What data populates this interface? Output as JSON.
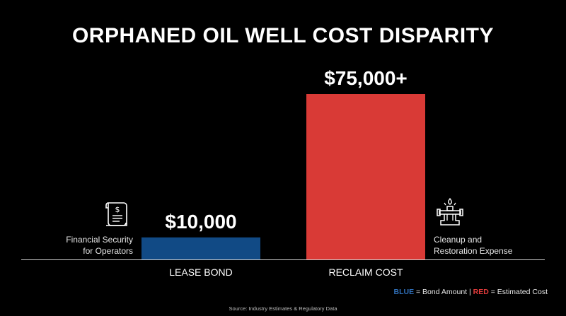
{
  "chart_data": {
    "type": "bar",
    "title": "ORPHANED OIL WELL COST DISPARITY",
    "categories": [
      "LEASE BOND",
      "RECLAIM COST"
    ],
    "values": [
      10000,
      75000
    ],
    "value_labels": [
      "$10,000",
      "$75,000+"
    ],
    "colors": [
      "#114a85",
      "#d93a36"
    ],
    "ylim": [
      0,
      80000
    ],
    "grid": false,
    "annotations": {
      "left": [
        "Financial Security",
        "for Operators"
      ],
      "right": [
        "Cleanup and",
        "Restoration Expense"
      ]
    },
    "legend": {
      "blue_word": "BLUE",
      "blue_text": " = Bond Amount | ",
      "red_word": "RED",
      "red_text": " = Estimated Cost"
    },
    "source": "Source: Industry Estimates & Regulatory Data"
  },
  "icons": {
    "left": "receipt-dollar-icon",
    "right": "oil-well-pump-icon"
  }
}
